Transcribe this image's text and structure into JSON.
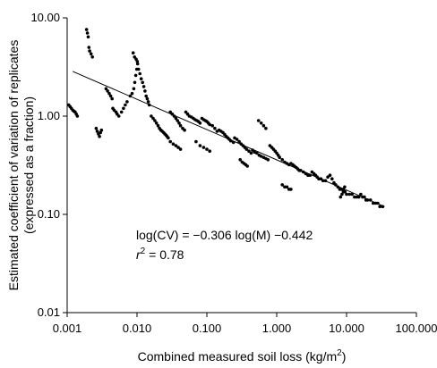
{
  "chart_data": {
    "type": "scatter",
    "title": "",
    "xlabel": "Combined measured soil loss (kg/m",
    "xlabel_sup": "2",
    "xlabel_suffix": ")",
    "ylabel_line1": "Estimated coefficient of variation of replicates",
    "ylabel_line2": "(expressed as a fraction)",
    "x_scale": "log",
    "y_scale": "log",
    "xlim": [
      0.001,
      100
    ],
    "ylim": [
      0.01,
      10
    ],
    "x_ticks": [
      0.001,
      0.01,
      0.1,
      1,
      10,
      100
    ],
    "x_tick_labels": [
      "0.001",
      "0.010",
      "0.100",
      "1.000",
      "10.000",
      "100.000"
    ],
    "y_ticks": [
      0.01,
      0.1,
      1,
      10
    ],
    "y_tick_labels": [
      "0.01",
      "0.10",
      "1.00",
      "10.00"
    ],
    "grid": false,
    "annotations": {
      "equation": "log(CV) = −0.306 log(M) −0.442",
      "r2_prefix": "r",
      "r2_sup": "2",
      "r2_suffix": " = 0.78"
    },
    "fit_line": {
      "x": [
        0.0012,
        35
      ],
      "y": [
        2.85,
        0.12
      ]
    },
    "series": [
      {
        "x": [
          0.00105,
          0.0011,
          0.00115,
          0.0012,
          0.00125,
          0.0013,
          0.00135,
          0.0014,
          0.0019,
          0.00195,
          0.002,
          0.00205,
          0.0021,
          0.0022,
          0.0023,
          0.0026,
          0.0027,
          0.0028,
          0.0029,
          0.003,
          0.0031,
          0.0036,
          0.0038,
          0.004,
          0.0042,
          0.0044,
          0.0045,
          0.0047,
          0.005,
          0.0052,
          0.0055,
          0.006,
          0.0064,
          0.0068,
          0.0072,
          0.008,
          0.0085,
          0.009,
          0.0093,
          0.0096,
          0.0099,
          0.0102,
          0.0105,
          0.011,
          0.0115,
          0.012,
          0.0125,
          0.013,
          0.0135,
          0.014,
          0.0145,
          0.015,
          0.0088,
          0.0092,
          0.0097,
          0.0101,
          0.016,
          0.017,
          0.018,
          0.019,
          0.02,
          0.021,
          0.022,
          0.023,
          0.024,
          0.025,
          0.026,
          0.027,
          0.028,
          0.03,
          0.032,
          0.034,
          0.036,
          0.038,
          0.04,
          0.042,
          0.045,
          0.048,
          0.03,
          0.033,
          0.036,
          0.039,
          0.042,
          0.05,
          0.053,
          0.056,
          0.06,
          0.064,
          0.068,
          0.072,
          0.076,
          0.08,
          0.085,
          0.09,
          0.095,
          0.1,
          0.105,
          0.11,
          0.12,
          0.13,
          0.14,
          0.07,
          0.08,
          0.09,
          0.1,
          0.11,
          0.15,
          0.16,
          0.17,
          0.18,
          0.19,
          0.2,
          0.21,
          0.22,
          0.24,
          0.25,
          0.27,
          0.29,
          0.31,
          0.33,
          0.35,
          0.37,
          0.4,
          0.43,
          0.3,
          0.32,
          0.34,
          0.36,
          0.38,
          0.45,
          0.48,
          0.52,
          0.56,
          0.6,
          0.65,
          0.7,
          0.75,
          0.8,
          0.85,
          0.9,
          0.95,
          1.0,
          1.05,
          1.1,
          1.2,
          1.3,
          1.4,
          1.5,
          0.55,
          0.6,
          0.65,
          0.7,
          1.6,
          1.7,
          1.8,
          1.9,
          2.0,
          2.1,
          2.2,
          2.4,
          2.6,
          2.8,
          3.0,
          3.2,
          3.4,
          3.6,
          3.8,
          4.0,
          4.3,
          4.6,
          5.0,
          5.4,
          5.8,
          6.2,
          6.6,
          7.0,
          1.2,
          1.3,
          1.4,
          1.5,
          1.6,
          7.5,
          8.0,
          8.5,
          9.0,
          9.5,
          10.0,
          11.0,
          12.0,
          13.0,
          14.0,
          15.0,
          16.0,
          17.0,
          18.0,
          19.0,
          20.0,
          22.0,
          24.0,
          26.0,
          28.0,
          30.0,
          33.0,
          8.2,
          8.6,
          9.0,
          9.4
        ],
        "y": [
          1.3,
          1.25,
          1.2,
          1.15,
          1.12,
          1.1,
          1.05,
          1.0,
          7.6,
          7.0,
          6.4,
          5.0,
          4.6,
          4.3,
          4.0,
          0.75,
          0.7,
          0.66,
          0.62,
          0.68,
          0.72,
          1.9,
          1.8,
          1.7,
          1.6,
          1.5,
          1.2,
          1.15,
          1.1,
          1.05,
          1.0,
          1.1,
          1.2,
          1.3,
          1.4,
          1.6,
          1.7,
          1.9,
          2.2,
          2.6,
          3.0,
          3.4,
          3.0,
          2.7,
          2.4,
          2.2,
          2.0,
          1.8,
          1.6,
          1.5,
          1.4,
          1.3,
          4.4,
          4.0,
          3.8,
          3.6,
          1.0,
          0.95,
          0.9,
          0.85,
          0.8,
          0.75,
          0.72,
          0.7,
          0.68,
          0.66,
          0.64,
          0.62,
          0.6,
          1.1,
          1.05,
          1.0,
          0.95,
          0.9,
          0.85,
          0.8,
          0.75,
          0.72,
          0.55,
          0.52,
          0.5,
          0.48,
          0.46,
          1.1,
          1.05,
          1.0,
          0.98,
          0.95,
          0.92,
          0.9,
          0.88,
          0.85,
          0.95,
          0.92,
          0.9,
          0.88,
          0.85,
          0.82,
          0.8,
          0.75,
          0.7,
          0.55,
          0.5,
          0.48,
          0.46,
          0.44,
          0.72,
          0.7,
          0.68,
          0.65,
          0.62,
          0.6,
          0.58,
          0.56,
          0.54,
          0.6,
          0.58,
          0.55,
          0.52,
          0.5,
          0.48,
          0.46,
          0.44,
          0.42,
          0.36,
          0.34,
          0.33,
          0.32,
          0.31,
          0.45,
          0.43,
          0.42,
          0.4,
          0.39,
          0.38,
          0.37,
          0.36,
          0.5,
          0.48,
          0.46,
          0.44,
          0.42,
          0.4,
          0.38,
          0.36,
          0.34,
          0.33,
          0.32,
          0.9,
          0.85,
          0.8,
          0.75,
          0.33,
          0.32,
          0.31,
          0.3,
          0.29,
          0.28,
          0.28,
          0.27,
          0.26,
          0.25,
          0.25,
          0.27,
          0.26,
          0.25,
          0.24,
          0.23,
          0.23,
          0.22,
          0.22,
          0.24,
          0.25,
          0.23,
          0.21,
          0.2,
          0.2,
          0.19,
          0.19,
          0.18,
          0.18,
          0.19,
          0.18,
          0.18,
          0.17,
          0.17,
          0.16,
          0.16,
          0.16,
          0.15,
          0.15,
          0.15,
          0.16,
          0.15,
          0.15,
          0.14,
          0.14,
          0.14,
          0.13,
          0.13,
          0.13,
          0.12,
          0.12,
          0.15,
          0.16,
          0.18,
          0.19
        ]
      }
    ]
  }
}
